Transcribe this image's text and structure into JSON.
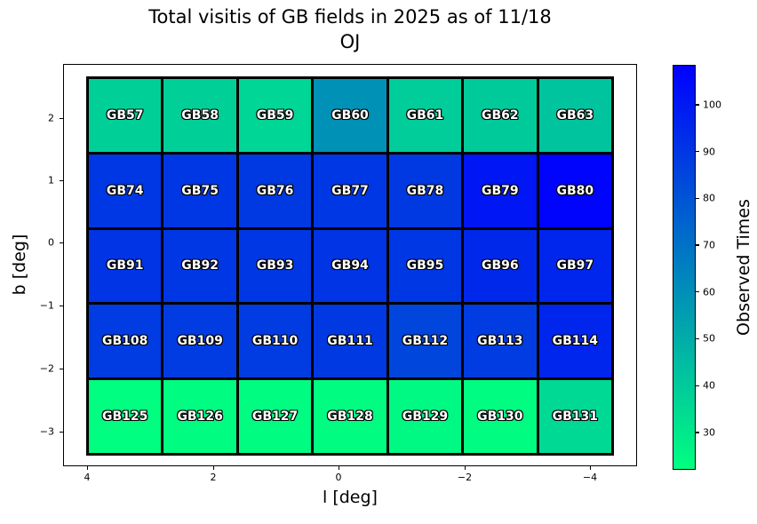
{
  "chart_data": {
    "type": "heatmap",
    "title_line1": "Total visitis of GB fields in 2025 as of 11/18",
    "title_line2": "OJ",
    "xlabel": "l [deg]",
    "ylabel": "b [deg]",
    "colorbar_label": "Observed Times",
    "colormap": "winter_r",
    "vmin": 22,
    "vmax": 108.5,
    "x_tick_labels": [
      "4",
      "2",
      "0",
      "−2",
      "−4"
    ],
    "y_tick_labels": [
      "2",
      "1",
      "0",
      "−1",
      "−2",
      "−3"
    ],
    "colorbar_tick_values": [
      100,
      90,
      80,
      70,
      60,
      50,
      40,
      30
    ],
    "color_low": "#00ff80",
    "color_high": "#0000ff",
    "grid_edge_color": "#000000",
    "axis_note": "x axis runs from l=4 (left) to l=-4 (right); y axis from b=2 (top area) to b=-3",
    "rows": [
      {
        "labels": [
          "GB57",
          "GB58",
          "GB59",
          "GB60",
          "GB61",
          "GB62",
          "GB63"
        ],
        "values": [
          38,
          38,
          36,
          59,
          39,
          40,
          42
        ]
      },
      {
        "labels": [
          "GB74",
          "GB75",
          "GB76",
          "GB77",
          "GB78",
          "GB79",
          "GB80"
        ],
        "values": [
          90,
          90,
          89,
          90,
          89,
          101,
          107
        ]
      },
      {
        "labels": [
          "GB91",
          "GB92",
          "GB93",
          "GB94",
          "GB95",
          "GB96",
          "GB97"
        ],
        "values": [
          91,
          90,
          90,
          91,
          90,
          95,
          96
        ]
      },
      {
        "labels": [
          "GB108",
          "GB109",
          "GB110",
          "GB111",
          "GB112",
          "GB113",
          "GB114"
        ],
        "values": [
          88,
          88,
          88,
          89,
          85,
          88,
          96
        ]
      },
      {
        "labels": [
          "GB125",
          "GB126",
          "GB127",
          "GB128",
          "GB129",
          "GB130",
          "GB131"
        ],
        "values": [
          22,
          23,
          23,
          23,
          24,
          23,
          35
        ]
      }
    ]
  }
}
